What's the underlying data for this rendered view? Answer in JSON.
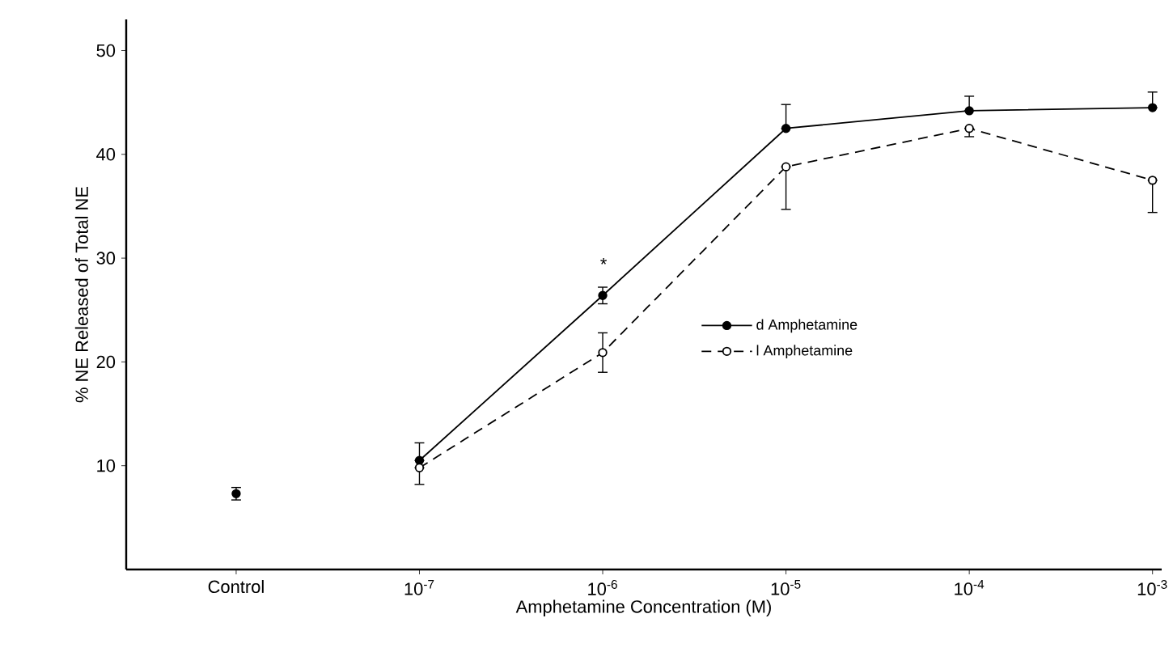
{
  "chart_data": {
    "type": "line",
    "xlabel": "Amphetamine Concentration (M)",
    "ylabel": "% NE Released of Total NE",
    "categories": [
      "Control",
      "10$^{-7}$",
      "10$^{-6}$",
      "10$^{-5}$",
      "10$^{-4}$",
      "10$^{-3}$"
    ],
    "series": [
      {
        "name": "d Amphetamine",
        "color": "#000000",
        "line_style": "solid",
        "values": [
          null,
          10.5,
          26.4,
          42.5,
          44.2,
          44.5
        ],
        "errors": [
          null,
          [
            10.5,
            12.2
          ],
          0.8,
          [
            42.5,
            44.8
          ],
          [
            44.2,
            45.6
          ],
          [
            44.5,
            46.0
          ]
        ]
      },
      {
        "name": "l Amphetamine",
        "color": "#000000",
        "line_style": "dashed",
        "values": [
          null,
          9.8,
          20.9,
          38.8,
          42.5,
          37.5
        ],
        "errors": [
          null,
          [
            8.2,
            9.8
          ],
          1.9,
          [
            34.7,
            38.8
          ],
          [
            41.7,
            42.5
          ],
          [
            34.4,
            37.5
          ]
        ]
      },
      {
        "type": "scatter",
        "color": "#000000",
        "values": [
          7.3,
          null,
          null,
          null,
          null,
          null
        ],
        "errors": [
          0.6,
          null,
          null,
          null,
          null,
          null
        ]
      }
    ],
    "ylim": [
      0,
      53
    ],
    "yticks": [
      10,
      20,
      30,
      40,
      50
    ],
    "marker": "circle",
    "legend": "center",
    "grid": false,
    "annotations": [
      "*"
    ]
  }
}
